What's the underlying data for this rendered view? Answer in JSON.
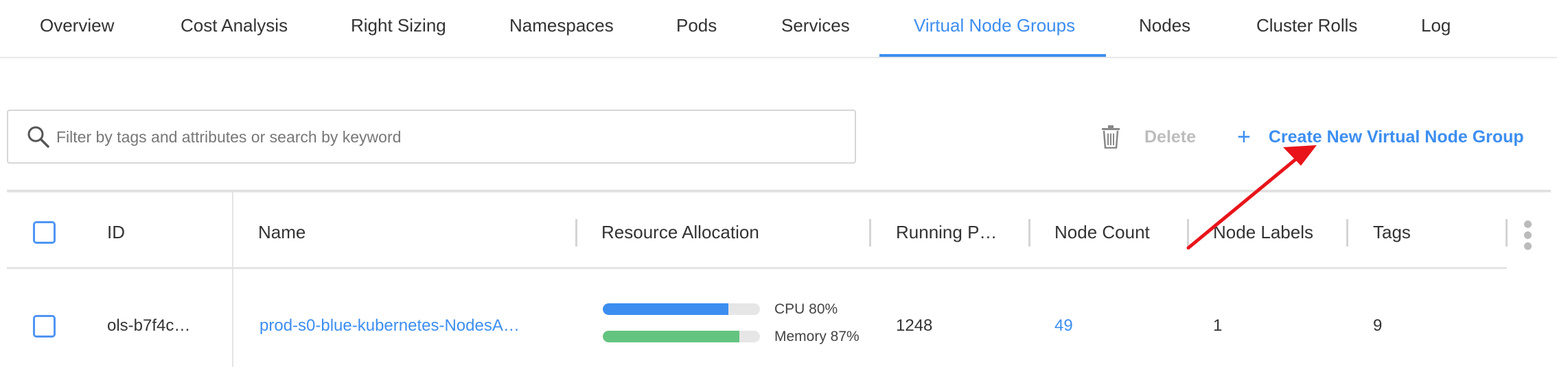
{
  "tabs": [
    {
      "label": "Overview"
    },
    {
      "label": "Cost Analysis"
    },
    {
      "label": "Right Sizing"
    },
    {
      "label": "Namespaces"
    },
    {
      "label": "Pods"
    },
    {
      "label": "Services"
    },
    {
      "label": "Virtual Node Groups",
      "active": true
    },
    {
      "label": "Nodes"
    },
    {
      "label": "Cluster Rolls"
    },
    {
      "label": "Log"
    }
  ],
  "search": {
    "placeholder": "Filter by tags and attributes or search by keyword",
    "value": "",
    "icon": "search-icon"
  },
  "toolbar": {
    "delete_label": "Delete",
    "create_label": "Create New Virtual Node Group",
    "delete_icon": "trash-icon",
    "create_icon": "plus-icon"
  },
  "table": {
    "columns": [
      "ID",
      "Name",
      "Resource Allocation",
      "Running P…",
      "Node Count",
      "Node Labels",
      "Tags"
    ],
    "rows": [
      {
        "id": "ols-b7f4c…",
        "name": "prod-s0-blue-kubernetes-NodesA…",
        "cpu_label": "CPU 80%",
        "cpu": 80,
        "memory_label": "Memory 87%",
        "memory": 87,
        "running_pods": "1248",
        "node_count": "49",
        "node_labels": "1",
        "tags": "9"
      }
    ]
  },
  "colors": {
    "accent": "#3d8ef0",
    "cpu_bar": "#3b8ef0",
    "memory_bar": "#63c480",
    "annotation_arrow": "#e8141a"
  }
}
